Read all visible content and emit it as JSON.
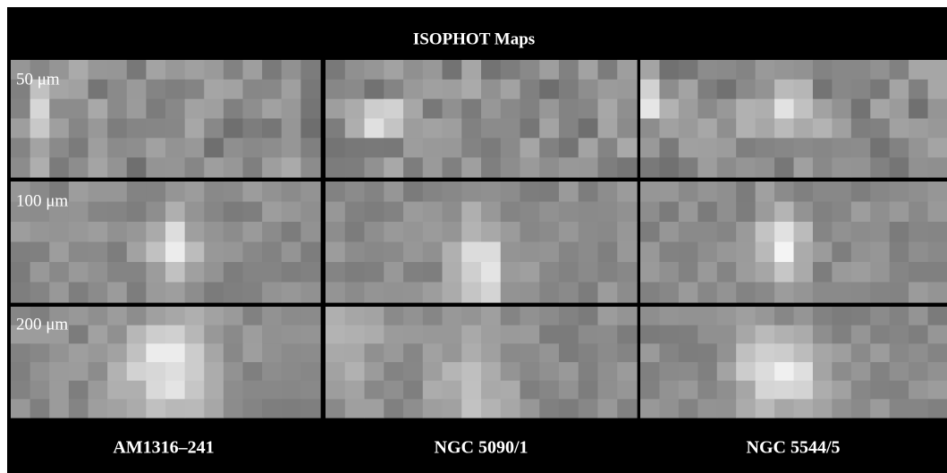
{
  "title": "ISOPHOT Maps",
  "row_labels": [
    "50 μm",
    "100 μm",
    "200 μm"
  ],
  "column_labels": [
    "AM1316–241",
    "NGC 5090/1",
    "NGC 5544/5"
  ]
}
